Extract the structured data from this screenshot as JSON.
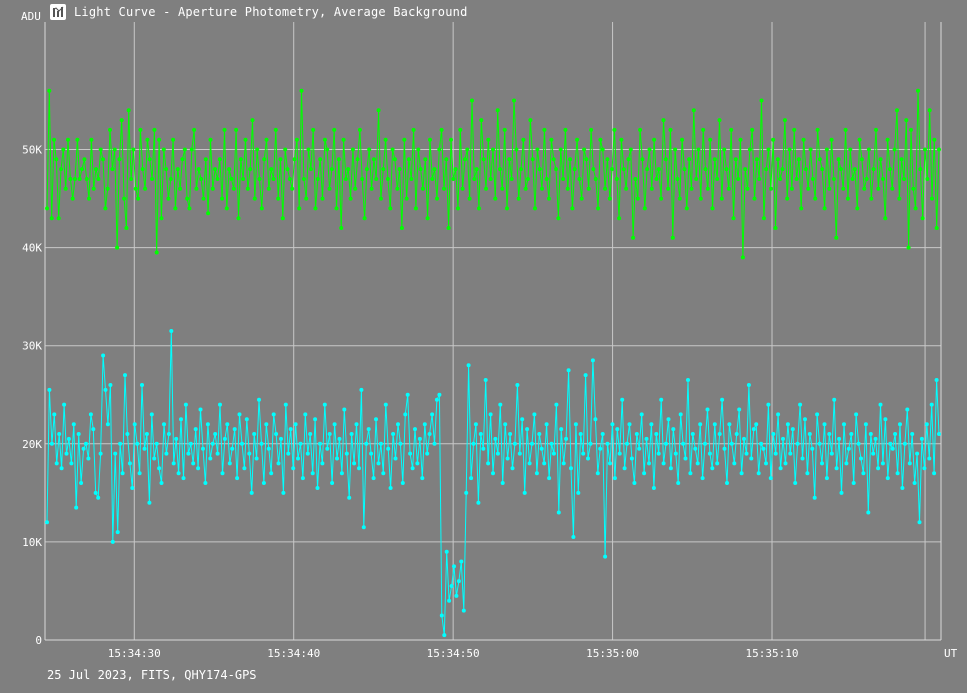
{
  "window": {
    "title": "Light Curve - Aperture Photometry, Average Background",
    "footer": "25 Jul 2023, FITS, QHY174-GPS",
    "icon": "light-curve-app-icon"
  },
  "chart_data": {
    "type": "line",
    "ylabel": "ADU",
    "xlabel": "UT",
    "ylim": [
      0,
      63000
    ],
    "grid": true,
    "y_ticks": [
      0,
      10000,
      20000,
      30000,
      40000,
      50000
    ],
    "y_tick_labels": [
      "0",
      "10K",
      "20K",
      "30K",
      "40K",
      "50K"
    ],
    "x_ticks": [
      "15:34:30",
      "15:34:40",
      "15:34:50",
      "15:35:00",
      "15:35:10"
    ],
    "x_range_seconds": [
      -5.6,
      50.6
    ],
    "series": [
      {
        "color": "#00ff00",
        "values": [
          44000,
          56000,
          43000,
          51000,
          49000,
          43000,
          48000,
          50000,
          46000,
          51000,
          47000,
          45000,
          47000,
          51000,
          47000,
          48000,
          49000,
          47000,
          45000,
          51000,
          46000,
          48000,
          47000,
          50000,
          49000,
          44000,
          46000,
          52000,
          48000,
          50000,
          40000,
          49000,
          53000,
          45000,
          42000,
          54000,
          47000,
          50000,
          46000,
          45000,
          52000,
          48000,
          46000,
          51000,
          49000,
          47000,
          52000,
          39500,
          51000,
          43000,
          50000,
          48000,
          45000,
          47000,
          51000,
          44000,
          48000,
          46000,
          49000,
          50000,
          45000,
          44000,
          50000,
          52000,
          46000,
          48000,
          47000,
          45000,
          49000,
          43500,
          51000,
          46000,
          48000,
          47000,
          49000,
          45000,
          52000,
          44000,
          48000,
          47000,
          46000,
          52000,
          43000,
          49000,
          47000,
          51000,
          46000,
          48000,
          53000,
          45000,
          50000,
          47000,
          44000,
          49000,
          51000,
          46000,
          48000,
          47000,
          52000,
          45000,
          49000,
          43000,
          50000,
          48000,
          47000,
          46000,
          49000,
          51000,
          44000,
          56000,
          47000,
          45000,
          50000,
          48000,
          52000,
          44000,
          47000,
          49000,
          45000,
          51000,
          50000,
          46000,
          48000,
          52000,
          44000,
          49000,
          42000,
          51000,
          47000,
          48000,
          45000,
          50000,
          46000,
          49000,
          52000,
          47000,
          43000,
          48000,
          50000,
          46000,
          49000,
          47000,
          54000,
          45000,
          48000,
          51000,
          47000,
          44000,
          50000,
          49000,
          46000,
          48000,
          42000,
          51000,
          45000,
          49000,
          47000,
          52000,
          44000,
          50000,
          48000,
          46000,
          49000,
          43000,
          51000,
          47000,
          48000,
          45000,
          50000,
          52000,
          46000,
          49000,
          42000,
          51000,
          47000,
          48000,
          44000,
          52000,
          46000,
          49000,
          50000,
          45000,
          55000,
          47000,
          48000,
          44000,
          53000,
          49000,
          46000,
          51000,
          47000,
          50000,
          45000,
          54000,
          48000,
          46000,
          52000,
          44000,
          49000,
          47000,
          55000,
          50000,
          45000,
          48000,
          51000,
          46000,
          47000,
          53000,
          49000,
          44000,
          50000,
          48000,
          46000,
          52000,
          47000,
          45000,
          51000,
          49000,
          48000,
          43000,
          50000,
          47000,
          52000,
          46000,
          49000,
          44000,
          48000,
          51000,
          47000,
          45000,
          50000,
          49000,
          46000,
          52000,
          48000,
          47000,
          44000,
          51000,
          50000,
          46000,
          49000,
          45000,
          48000,
          52000,
          47000,
          43000,
          51000,
          48000,
          46000,
          49000,
          50000,
          41000,
          47000,
          45000,
          52000,
          49000,
          44000,
          48000,
          50000,
          46000,
          51000,
          47000,
          48000,
          45000,
          53000,
          49000,
          46000,
          52000,
          41000,
          50000,
          47000,
          45000,
          51000,
          48000,
          44000,
          49000,
          46000,
          54000,
          47000,
          50000,
          45000,
          52000,
          48000,
          46000,
          51000,
          44000,
          49000,
          47000,
          53000,
          45000,
          50000,
          48000,
          46000,
          52000,
          43000,
          49000,
          47000,
          51000,
          39000,
          48000,
          46000,
          50000,
          52000,
          45000,
          49000,
          47000,
          55000,
          43000,
          48000,
          50000,
          46000,
          51000,
          42000,
          49000,
          47000,
          48000,
          53000,
          45000,
          50000,
          46000,
          52000,
          47000,
          49000,
          44000,
          51000,
          48000,
          46000,
          50000,
          47000,
          45000,
          52000,
          49000,
          48000,
          44000,
          50000,
          46000,
          51000,
          47000,
          41000,
          49000,
          48000,
          46000,
          52000,
          45000,
          50000,
          47000,
          48000,
          44000,
          51000,
          49000,
          46000,
          47000,
          50000,
          45000,
          48000,
          52000,
          46000,
          49000,
          47000,
          43000,
          51000,
          48000,
          46000,
          50000,
          54000,
          45000,
          49000,
          47000,
          53000,
          40000,
          52000,
          46000,
          44000,
          56000,
          48000,
          43000,
          50000,
          47000,
          54000,
          45000,
          51000,
          42000,
          50000
        ]
      },
      {
        "color": "#00ffff",
        "values": [
          12000,
          25500,
          20000,
          23000,
          18000,
          21000,
          17500,
          24000,
          19000,
          20500,
          18000,
          22000,
          13500,
          21000,
          16000,
          19500,
          20000,
          18500,
          23000,
          21500,
          15000,
          14500,
          19000,
          29000,
          25500,
          22000,
          26000,
          10000,
          19000,
          11000,
          20000,
          17000,
          27000,
          21000,
          18000,
          15500,
          22000,
          20000,
          17000,
          26000,
          19500,
          21000,
          14000,
          23000,
          18500,
          20000,
          17500,
          16000,
          22000,
          19000,
          21000,
          31500,
          18000,
          20500,
          17000,
          22500,
          16500,
          24000,
          19000,
          20000,
          18000,
          21500,
          17500,
          23500,
          19500,
          16000,
          22000,
          18500,
          20000,
          21000,
          19000,
          24000,
          17000,
          20500,
          22000,
          18000,
          19500,
          21500,
          16500,
          23000,
          20000,
          17500,
          22500,
          19000,
          15000,
          21000,
          18500,
          24500,
          20000,
          16000,
          22000,
          19500,
          17000,
          23000,
          21000,
          18000,
          20500,
          15000,
          24000,
          19000,
          21500,
          17500,
          22000,
          18500,
          20000,
          16500,
          23000,
          19000,
          21000,
          17000,
          22500,
          15500,
          20000,
          18000,
          24000,
          19500,
          21000,
          16000,
          22000,
          18500,
          20500,
          17000,
          23500,
          19000,
          14500,
          21000,
          18000,
          22000,
          17500,
          25500,
          11500,
          20000,
          21500,
          19000,
          16500,
          22500,
          18000,
          20000,
          17000,
          24000,
          19500,
          15500,
          21000,
          18500,
          22000,
          20000,
          16000,
          23000,
          25000,
          19000,
          17500,
          21500,
          18000,
          20500,
          16500,
          22000,
          19000,
          21000,
          23000,
          20000,
          24500,
          25000,
          2500,
          500,
          9000,
          4000,
          5500,
          7500,
          4500,
          6000,
          8000,
          3000,
          15000,
          28000,
          16500,
          20000,
          22000,
          14000,
          21000,
          19500,
          26500,
          18000,
          23000,
          17000,
          20500,
          19000,
          24000,
          16000,
          22000,
          18500,
          21000,
          17500,
          20000,
          26000,
          19000,
          22500,
          15000,
          21500,
          18000,
          20000,
          23000,
          17000,
          21000,
          19500,
          18000,
          22000,
          16500,
          20000,
          19000,
          24000,
          13000,
          21500,
          18000,
          20500,
          27500,
          17500,
          10500,
          22000,
          15000,
          21000,
          19000,
          27000,
          18500,
          20000,
          28500,
          22500,
          17000,
          19500,
          21000,
          8500,
          20000,
          18000,
          22000,
          16500,
          21500,
          19000,
          24500,
          17500,
          20000,
          22000,
          18500,
          16000,
          21000,
          19500,
          23000,
          17000,
          20500,
          18000,
          22000,
          15500,
          21000,
          19000,
          24500,
          18000,
          20000,
          22500,
          17500,
          21500,
          19000,
          16000,
          23000,
          20000,
          18500,
          26500,
          17000,
          21000,
          19500,
          18000,
          22000,
          16500,
          20000,
          23500,
          19000,
          17500,
          22000,
          18000,
          21000,
          24500,
          19500,
          16000,
          22000,
          20000,
          18000,
          21000,
          23500,
          17000,
          20500,
          19000,
          26000,
          18500,
          21500,
          22000,
          17000,
          20000,
          19500,
          18000,
          24000,
          16500,
          21000,
          19000,
          23000,
          17500,
          20500,
          18000,
          22000,
          19000,
          21500,
          16000,
          20000,
          24000,
          18500,
          22500,
          17000,
          21000,
          19500,
          14500,
          23000,
          20000,
          18000,
          22000,
          16500,
          21000,
          19000,
          24500,
          17500,
          20500,
          15000,
          22000,
          18000,
          19500,
          21000,
          16000,
          23000,
          20000,
          18500,
          17000,
          22000,
          13000,
          21000,
          19000,
          20500,
          17500,
          24000,
          18000,
          22500,
          16500,
          20000,
          19500,
          21000,
          17000,
          22000,
          15500,
          20000,
          23500,
          18000,
          21000,
          16000,
          19000,
          12000,
          20500,
          17500,
          22000,
          18500,
          24000,
          17000,
          26500,
          21000
        ]
      }
    ]
  }
}
